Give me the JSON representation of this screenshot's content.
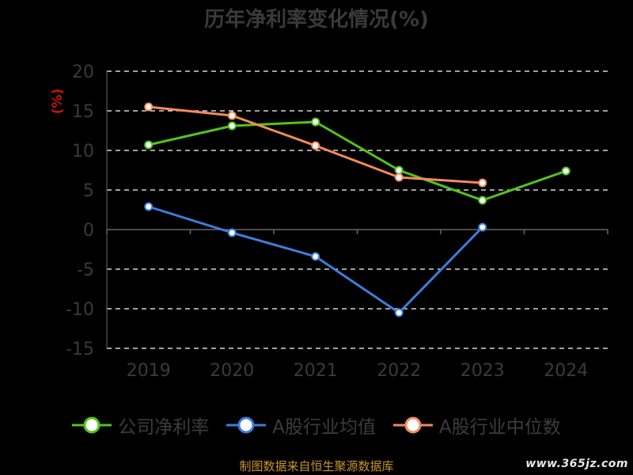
{
  "title": "历年净利率变化情况(%)",
  "source": "制图数据来自恒生聚源数据库",
  "watermark": "www.365jz.com",
  "colors": {
    "background": "#000000",
    "grid": "#ffffff",
    "axis": "#666666",
    "tick_text": "#3a3a3a",
    "unit_label": "#cc1010"
  },
  "chart_data": {
    "type": "line",
    "title": "历年净利率变化情况(%)",
    "ylabel": "(%)",
    "ylim": [
      -15,
      20
    ],
    "yticks": [
      20,
      15,
      10,
      5,
      0,
      -5,
      -10,
      -15
    ],
    "grid": true,
    "legend_position": "bottom",
    "categories": [
      "2019",
      "2020",
      "2021",
      "2022",
      "2023",
      "2024"
    ],
    "series": [
      {
        "name": "公司净利率",
        "color": "#52c41a",
        "values": [
          10.7,
          13.1,
          13.6,
          7.5,
          3.7,
          7.4
        ]
      },
      {
        "name": "A股行业均值",
        "color": "#3d7ddb",
        "values": [
          2.9,
          -0.4,
          -3.4,
          -10.5,
          0.3,
          null
        ]
      },
      {
        "name": "A股行业中位数",
        "color": "#f58a5c",
        "values": [
          15.5,
          14.4,
          10.6,
          6.6,
          5.9,
          null
        ]
      }
    ]
  }
}
